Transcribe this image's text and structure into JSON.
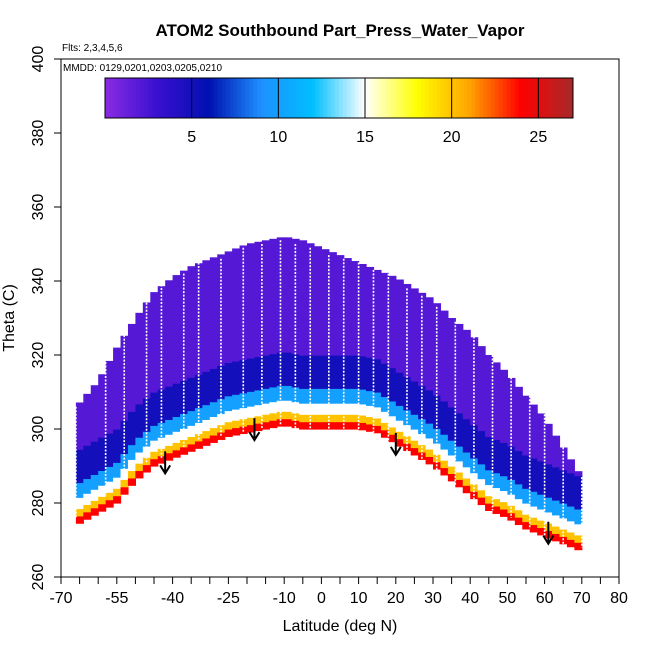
{
  "chart_data": {
    "type": "heatmap",
    "title": "ATOM2 Southbound Part_Press_Water_Vapor",
    "flights_label": "Flts: 2,3,4,5,6",
    "dates_label": "MMDD: 0129,0201,0203,0205,0210",
    "xlabel": "Latitude (deg N)",
    "ylabel": "Theta (C)",
    "xlim": [
      -70,
      80
    ],
    "ylim": [
      260,
      400
    ],
    "x_ticks": [
      -70,
      -55,
      -40,
      -25,
      -10,
      0,
      10,
      20,
      30,
      40,
      50,
      60,
      70,
      80
    ],
    "x_tick_labels": [
      "-70",
      "-55",
      "-40",
      "-25",
      "-10",
      "0",
      "10",
      "20",
      "30",
      "40",
      "50",
      "60",
      "70",
      "80"
    ],
    "x_minor_ticks": [
      -65,
      -60,
      -50,
      -45,
      -35,
      -30,
      -20,
      -15,
      -5,
      5,
      15,
      25,
      35,
      45,
      55,
      65,
      75
    ],
    "y_ticks": [
      260,
      280,
      300,
      320,
      340,
      360,
      380,
      400
    ],
    "y_tick_labels": [
      "260",
      "280",
      "300",
      "320",
      "340",
      "360",
      "380",
      "400"
    ],
    "grid": false,
    "colorbar": {
      "range": [
        0,
        27
      ],
      "ticks": [
        5,
        10,
        15,
        20,
        25
      ],
      "tick_labels": [
        "5",
        "10",
        "15",
        "20",
        "25"
      ],
      "colors": [
        "#8a2be2",
        "#3a10d0",
        "#0010b0",
        "#1e90ff",
        "#00bfff",
        "#ffffff",
        "#ffff00",
        "#ffa500",
        "#ff0000",
        "#a52a2a"
      ]
    },
    "surface_envelope": {
      "lat": [
        -66,
        -55,
        -50,
        -45,
        -40,
        -35,
        -30,
        -25,
        -20,
        -15,
        -10,
        -5,
        0,
        5,
        10,
        15,
        20,
        25,
        30,
        35,
        40,
        45,
        50,
        55,
        60,
        65,
        70
      ],
      "theta": [
        274,
        280,
        286,
        290,
        292,
        294,
        296,
        298,
        299,
        300,
        301,
        300,
        300,
        300,
        300,
        299,
        296,
        293,
        290,
        286,
        282,
        278,
        276,
        273,
        271,
        269,
        267
      ]
    },
    "top_envelope": {
      "lat": [
        -66,
        -60,
        -55,
        -50,
        -45,
        -40,
        -35,
        -30,
        -25,
        -20,
        -15,
        -10,
        -5,
        0,
        5,
        10,
        15,
        20,
        25,
        30,
        35,
        40,
        45,
        50,
        55,
        60,
        65,
        70
      ],
      "theta": [
        306,
        313,
        322,
        330,
        337,
        341,
        344,
        346,
        348,
        350,
        351,
        352,
        351,
        349,
        347,
        345,
        343,
        341,
        338,
        335,
        330,
        326,
        320,
        315,
        309,
        303,
        295,
        287
      ]
    },
    "field_bands": [
      {
        "offset_lo": 0,
        "offset_hi": 2,
        "value": 24
      },
      {
        "offset_lo": 2,
        "offset_hi": 4,
        "value": 20
      },
      {
        "offset_lo": 4,
        "offset_hi": 7,
        "value": 15
      },
      {
        "offset_lo": 7,
        "offset_hi": 11,
        "value": 10
      },
      {
        "offset_lo": 11,
        "offset_hi": 20,
        "value": 5
      },
      {
        "offset_lo": 20,
        "offset_hi": 80,
        "value": 2
      }
    ],
    "surface_arrows": [
      {
        "lat": -42,
        "theta": 288
      },
      {
        "lat": -18,
        "theta": 297
      },
      {
        "lat": 20,
        "theta": 293
      },
      {
        "lat": 61,
        "theta": 269
      }
    ],
    "profiles": [
      {
        "lat": -66,
        "top": 306,
        "bottom": 276
      },
      {
        "lat": -58,
        "top": 320,
        "bottom": 282
      },
      {
        "lat": -53,
        "top": 332,
        "bottom": 288
      },
      {
        "lat": -47,
        "top": 336,
        "bottom": 291
      },
      {
        "lat": -43,
        "top": 340,
        "bottom": 292
      },
      {
        "lat": -37,
        "top": 342,
        "bottom": 295
      },
      {
        "lat": -33,
        "top": 345,
        "bottom": 297
      },
      {
        "lat": -27,
        "top": 346,
        "bottom": 298
      },
      {
        "lat": -21,
        "top": 349,
        "bottom": 299
      },
      {
        "lat": -16,
        "top": 350,
        "bottom": 300
      },
      {
        "lat": -11,
        "top": 351,
        "bottom": 301
      },
      {
        "lat": -7,
        "top": 350,
        "bottom": 300
      },
      {
        "lat": -3,
        "top": 349,
        "bottom": 300
      },
      {
        "lat": 2,
        "top": 347,
        "bottom": 300
      },
      {
        "lat": 6,
        "top": 346,
        "bottom": 300
      },
      {
        "lat": 10,
        "top": 345,
        "bottom": 300
      },
      {
        "lat": 14,
        "top": 343,
        "bottom": 299
      },
      {
        "lat": 18,
        "top": 342,
        "bottom": 296
      },
      {
        "lat": 23,
        "top": 338,
        "bottom": 293
      },
      {
        "lat": 27,
        "top": 336,
        "bottom": 291
      },
      {
        "lat": 31,
        "top": 333,
        "bottom": 289
      },
      {
        "lat": 36,
        "top": 329,
        "bottom": 285
      },
      {
        "lat": 41,
        "top": 325,
        "bottom": 281
      },
      {
        "lat": 46,
        "top": 320,
        "bottom": 278
      },
      {
        "lat": 51,
        "top": 314,
        "bottom": 276
      },
      {
        "lat": 56,
        "top": 309,
        "bottom": 273
      },
      {
        "lat": 60,
        "top": 304,
        "bottom": 271
      },
      {
        "lat": 65,
        "top": 296,
        "bottom": 269
      },
      {
        "lat": 70,
        "top": 287,
        "bottom": 268
      }
    ]
  }
}
